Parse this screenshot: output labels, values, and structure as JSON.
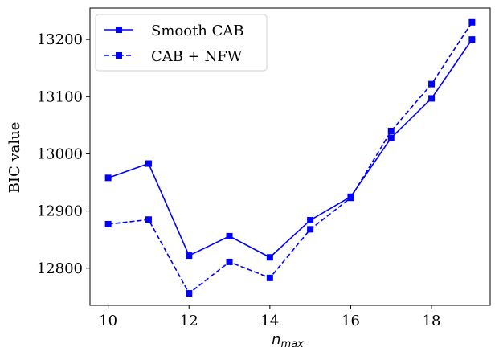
{
  "chart_data": {
    "type": "line",
    "title": "",
    "xlabel": "n",
    "xlabel_subscript": "max",
    "ylabel": "BIC value",
    "xlim": [
      9.55,
      19.45
    ],
    "ylim": [
      12735,
      13255
    ],
    "xticks": [
      10,
      12,
      14,
      16,
      18
    ],
    "xtick_labels": [
      "10",
      "12",
      "14",
      "16",
      "18"
    ],
    "yticks": [
      12800,
      12900,
      13000,
      13100,
      13200
    ],
    "ytick_labels": [
      "12800",
      "12900",
      "13000",
      "13100",
      "13200"
    ],
    "legend_position": "top-left",
    "x": [
      10,
      11,
      12,
      13,
      14,
      15,
      16,
      17,
      18,
      19
    ],
    "series": [
      {
        "name": "Smooth CAB",
        "style": "solid",
        "marker": "square",
        "color": "#0000ff",
        "values": [
          12958,
          12983,
          12822,
          12856,
          12819,
          12884,
          12925,
          13028,
          13097,
          13200
        ]
      },
      {
        "name": "CAB + NFW",
        "style": "dashed",
        "marker": "square",
        "color": "#0000ff",
        "values": [
          12877,
          12885,
          12756,
          12811,
          12783,
          12868,
          12923,
          13040,
          13122,
          13230
        ]
      }
    ]
  }
}
